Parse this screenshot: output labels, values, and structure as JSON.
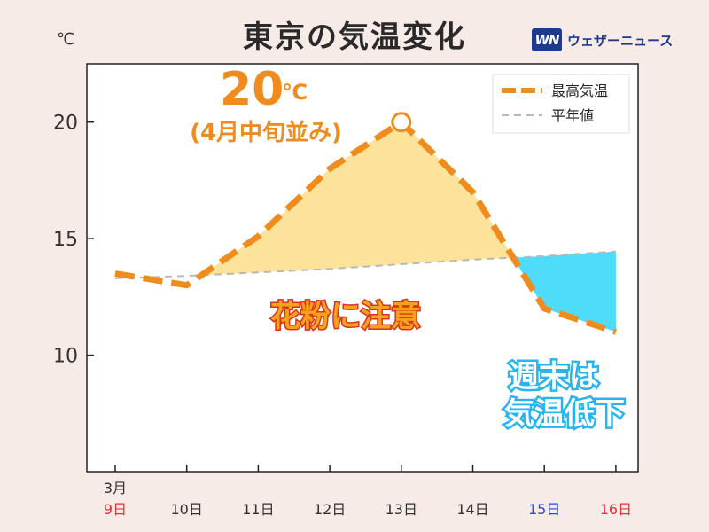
{
  "title": "東京の気温変化",
  "logo": {
    "mark": "WN",
    "text": "ウェザーニュース"
  },
  "chart_data": {
    "type": "line",
    "unit": "℃",
    "categories": [
      "9日",
      "10日",
      "11日",
      "12日",
      "13日",
      "14日",
      "15日",
      "16日"
    ],
    "month_label": "3月",
    "category_colors": [
      "#e0323c",
      "#333333",
      "#333333",
      "#333333",
      "#333333",
      "#333333",
      "#2a4ad0",
      "#e0323c"
    ],
    "ylim": [
      5,
      22.5
    ],
    "yticks": [
      10,
      15,
      20
    ],
    "series": [
      {
        "name": "最高気温",
        "values": [
          13.5,
          13.0,
          15.1,
          18.0,
          20.0,
          17.0,
          12.0,
          11.0
        ],
        "color": "#f08c1e",
        "style": "dashed-thick"
      },
      {
        "name": "平年値",
        "values": [
          13.3,
          13.4,
          13.55,
          13.7,
          13.9,
          14.1,
          14.25,
          14.45
        ],
        "color": "#b8b8b8",
        "style": "dashed-thin"
      }
    ],
    "highlight": {
      "category": "13日",
      "value": 20
    },
    "annotations": {
      "peak_value": "20",
      "peak_unit": "℃",
      "peak_note": "(4月中旬並み)",
      "pollen": "花粉に注意",
      "weekend_line1": "週末は",
      "weekend_line2": "気温低下"
    },
    "fill_above_color": "#fde29a",
    "fill_below_color": "#4fdcfb",
    "legend_position": "top-right"
  }
}
